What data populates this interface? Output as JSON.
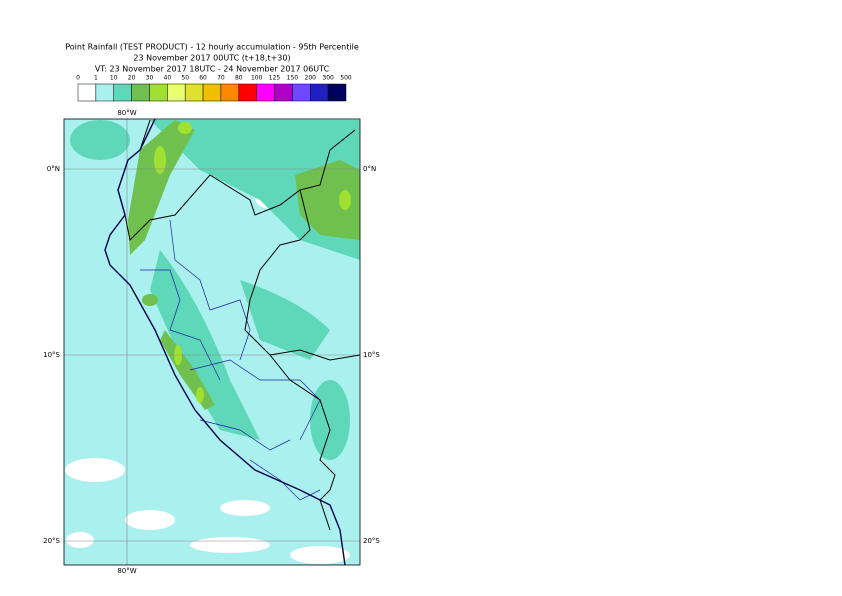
{
  "title": [
    "Point Rainfall (TEST PRODUCT) - 12 hourly accumulation - 95th Percentile",
    "23 November 2017 00UTC (t+18,t+30)",
    "VT: 23 November 2017 18UTC - 24 November 2017 06UTC"
  ],
  "legend": {
    "levels": [
      0,
      1,
      10,
      20,
      30,
      40,
      50,
      60,
      70,
      80,
      100,
      125,
      150,
      200,
      300,
      500
    ],
    "colors": [
      "#ffffff",
      "#aaf0ee",
      "#5ed8b8",
      "#70c050",
      "#a0e030",
      "#e8ff70",
      "#e0e030",
      "#f0c000",
      "#ff8800",
      "#ff0000",
      "#ff00ff",
      "#b000c8",
      "#7048ff",
      "#2020c0",
      "#000060"
    ]
  },
  "map": {
    "lon_top": "80°W",
    "lon_bottom": "80°W",
    "lat_left": [
      "0°N",
      "10°S",
      "20°S"
    ],
    "lat_right": [
      "0°N",
      "10°S",
      "20°S"
    ]
  }
}
